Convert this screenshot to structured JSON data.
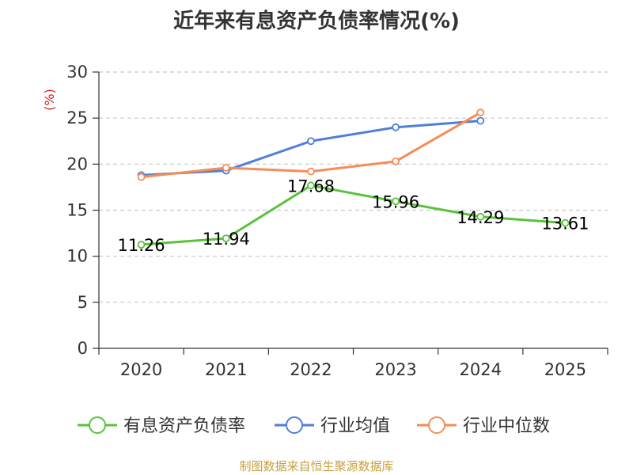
{
  "chart_data": {
    "type": "line",
    "title": "近年来有息资产负债率情况(%)",
    "ylabel": "(%)",
    "xlabel": "",
    "categories": [
      "2020",
      "2021",
      "2022",
      "2023",
      "2024",
      "2025"
    ],
    "ylim": [
      0,
      30
    ],
    "yticks": [
      "0",
      "5",
      "10",
      "15",
      "20",
      "25",
      "30"
    ],
    "grid": true,
    "legend_position": "bottom",
    "series": [
      {
        "name": "有息资产负债率",
        "color": "#5ac23a",
        "values": [
          11.26,
          11.94,
          17.68,
          15.96,
          14.29,
          13.61
        ],
        "labels": [
          "11.26",
          "11.94",
          "17.68",
          "15.96",
          "14.29",
          "13.61"
        ]
      },
      {
        "name": "行业均值",
        "color": "#4f7fd6",
        "values": [
          18.8,
          19.3,
          22.5,
          24.0,
          24.7,
          null
        ]
      },
      {
        "name": "行业中位数",
        "color": "#f58d58",
        "values": [
          18.6,
          19.6,
          19.2,
          20.3,
          25.6,
          null
        ]
      }
    ]
  },
  "footer": {
    "source": "制图数据来自恒生聚源数据库"
  }
}
